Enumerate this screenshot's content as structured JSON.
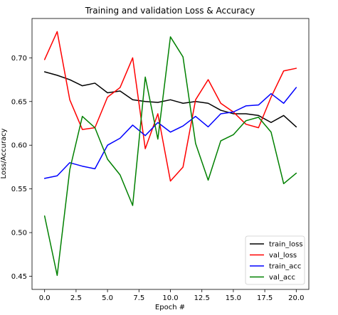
{
  "chart_data": {
    "type": "line",
    "title": "Training and validation Loss & Accuracy",
    "xlabel": "Epoch #",
    "ylabel": "Loss/Accuracy",
    "xlim": [
      -1.0,
      21.0
    ],
    "ylim": [
      0.435,
      0.745
    ],
    "xticks": [
      0.0,
      2.5,
      5.0,
      7.5,
      10.0,
      12.5,
      15.0,
      17.5,
      20.0
    ],
    "xtick_labels": [
      "0.0",
      "2.5",
      "5.0",
      "7.5",
      "10.0",
      "12.5",
      "15.0",
      "17.5",
      "20.0"
    ],
    "yticks": [
      0.45,
      0.5,
      0.55,
      0.6,
      0.65,
      0.7
    ],
    "ytick_labels": [
      "0.45",
      "0.50",
      "0.55",
      "0.60",
      "0.65",
      "0.70"
    ],
    "grid": false,
    "legend_position": "bottom-right",
    "x": [
      0,
      1,
      2,
      3,
      4,
      5,
      6,
      7,
      8,
      9,
      10,
      11,
      12,
      13,
      14,
      15,
      16,
      17,
      18,
      19,
      20
    ],
    "series": [
      {
        "name": "train_loss",
        "color": "#000000",
        "values": [
          0.684,
          0.68,
          0.675,
          0.668,
          0.671,
          0.66,
          0.662,
          0.652,
          0.65,
          0.649,
          0.652,
          0.648,
          0.65,
          0.648,
          0.64,
          0.636,
          0.636,
          0.634,
          0.626,
          0.634,
          0.621
        ]
      },
      {
        "name": "val_loss",
        "color": "#ff0000",
        "values": [
          0.698,
          0.73,
          0.652,
          0.618,
          0.62,
          0.655,
          0.666,
          0.7,
          0.596,
          0.636,
          0.559,
          0.575,
          0.652,
          0.675,
          0.648,
          0.638,
          0.624,
          0.62,
          0.655,
          0.685,
          0.688
        ]
      },
      {
        "name": "train_acc",
        "color": "#0000ff",
        "values": [
          0.562,
          0.565,
          0.58,
          0.576,
          0.573,
          0.6,
          0.608,
          0.623,
          0.611,
          0.626,
          0.615,
          0.622,
          0.633,
          0.621,
          0.636,
          0.638,
          0.645,
          0.646,
          0.659,
          0.648,
          0.666
        ]
      },
      {
        "name": "val_acc",
        "color": "#008000",
        "values": [
          0.519,
          0.451,
          0.572,
          0.633,
          0.62,
          0.584,
          0.566,
          0.531,
          0.678,
          0.607,
          0.724,
          0.701,
          0.602,
          0.56,
          0.605,
          0.612,
          0.628,
          0.632,
          0.615,
          0.556,
          0.568
        ]
      }
    ]
  }
}
